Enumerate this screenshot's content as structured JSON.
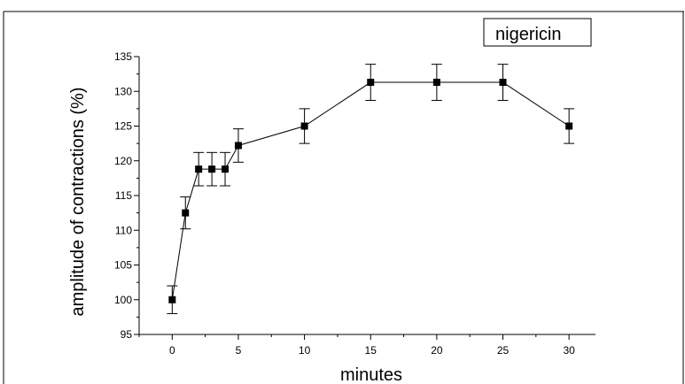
{
  "chart_data": {
    "type": "line",
    "title": "",
    "xlabel": "minutes",
    "ylabel": "amplitude of contractions (%)",
    "legend": {
      "text": "nigericin",
      "placement": "top-right"
    },
    "xlim": [
      -2.5,
      32
    ],
    "ylim": [
      95,
      135
    ],
    "xticks": [
      0,
      5,
      10,
      15,
      20,
      25,
      30
    ],
    "yticks": [
      95,
      100,
      105,
      110,
      115,
      120,
      125,
      130,
      135
    ],
    "grid": false,
    "series": [
      {
        "x": [
          0,
          1,
          2,
          3,
          4,
          5,
          10,
          15,
          20,
          25,
          30
        ],
        "y": [
          100,
          112.5,
          118.8,
          118.8,
          118.8,
          122.2,
          125.0,
          131.3,
          131.3,
          131.3,
          125.0
        ],
        "error": [
          2.0,
          2.3,
          2.4,
          2.4,
          2.4,
          2.4,
          2.5,
          2.6,
          2.6,
          2.6,
          2.5
        ],
        "marker": "square",
        "color": "#000000"
      }
    ]
  }
}
